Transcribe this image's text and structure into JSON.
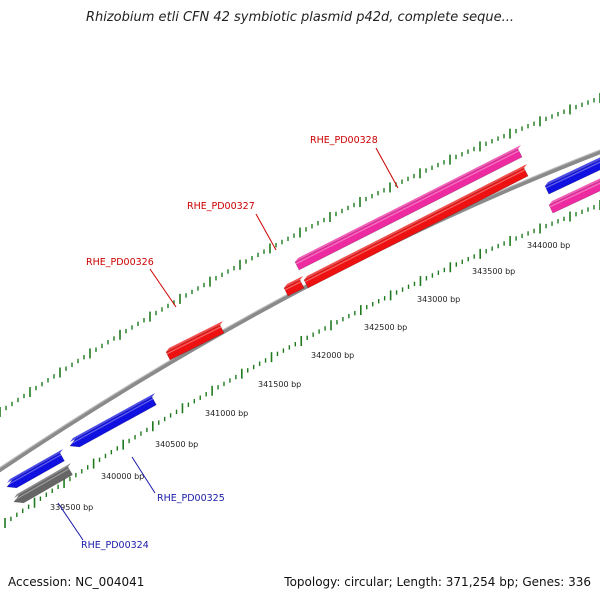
{
  "title": "Rhizobium etli CFN 42 symbiotic plasmid p42d, complete seque...",
  "footer": {
    "accession": "Accession: NC_004041",
    "stats": "Topology: circular; Length: 371,254 bp; Genes: 336"
  },
  "colors": {
    "backbone": "#8a8a8a",
    "tick": "#1f7a1f",
    "blue_gene": "#1010e0",
    "red_gene": "#ee1111",
    "pink_gene": "#ee2aa0",
    "gray_gene": "#666666",
    "red_label": "#cc0000",
    "blue_label": "#1a1aa8"
  },
  "ticks": [
    "339500 bp",
    "340000 bp",
    "340500 bp",
    "341000 bp",
    "341500 bp",
    "342000 bp",
    "342500 bp",
    "343000 bp",
    "343500 bp",
    "344000 bp"
  ],
  "labels": [
    {
      "id": "RHE_PD00324",
      "text": "RHE_PD00324",
      "color": "blue_label"
    },
    {
      "id": "RHE_PD00325",
      "text": "RHE_PD00325",
      "color": "blue_label"
    },
    {
      "id": "RHE_PD00326",
      "text": "RHE_PD00326",
      "color": "red_label"
    },
    {
      "id": "RHE_PD00327",
      "text": "RHE_PD00327",
      "color": "red_label"
    },
    {
      "id": "RHE_PD00328",
      "text": "RHE_PD00328",
      "color": "red_label"
    }
  ]
}
